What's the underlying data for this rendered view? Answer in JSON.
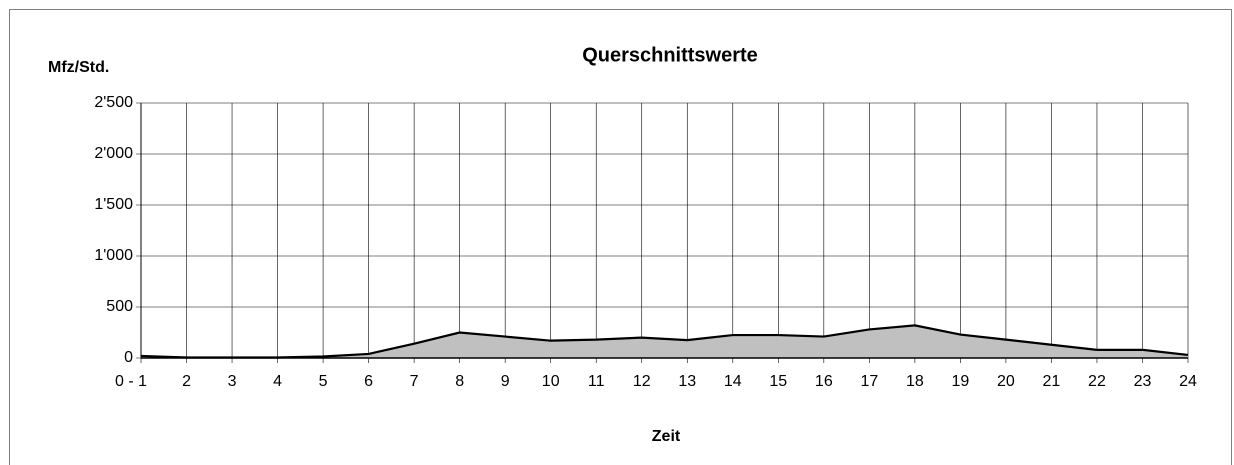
{
  "chart_data": {
    "type": "area",
    "title": "Querschnittswerte",
    "y_label": "Mfz/Std.",
    "x_label": "Zeit",
    "categories": [
      "0 - 1",
      "2",
      "3",
      "4",
      "5",
      "6",
      "7",
      "8",
      "9",
      "10",
      "11",
      "12",
      "13",
      "14",
      "15",
      "16",
      "17",
      "18",
      "19",
      "20",
      "21",
      "22",
      "23",
      "24"
    ],
    "values": [
      20,
      5,
      5,
      5,
      15,
      40,
      140,
      250,
      210,
      170,
      180,
      200,
      175,
      225,
      225,
      210,
      280,
      320,
      230,
      180,
      130,
      80,
      80,
      30
    ],
    "color": "#c0c0c0",
    "line_color": "#000000",
    "ylim": [
      0,
      2500
    ],
    "yticks": [
      0,
      500,
      {
        "value": 1000,
        "label": "1'000"
      },
      {
        "value": 1500,
        "label": "1'500"
      },
      {
        "value": 2000,
        "label": "2'000"
      },
      {
        "value": 2500,
        "label": "2'500"
      }
    ],
    "grid": true
  }
}
